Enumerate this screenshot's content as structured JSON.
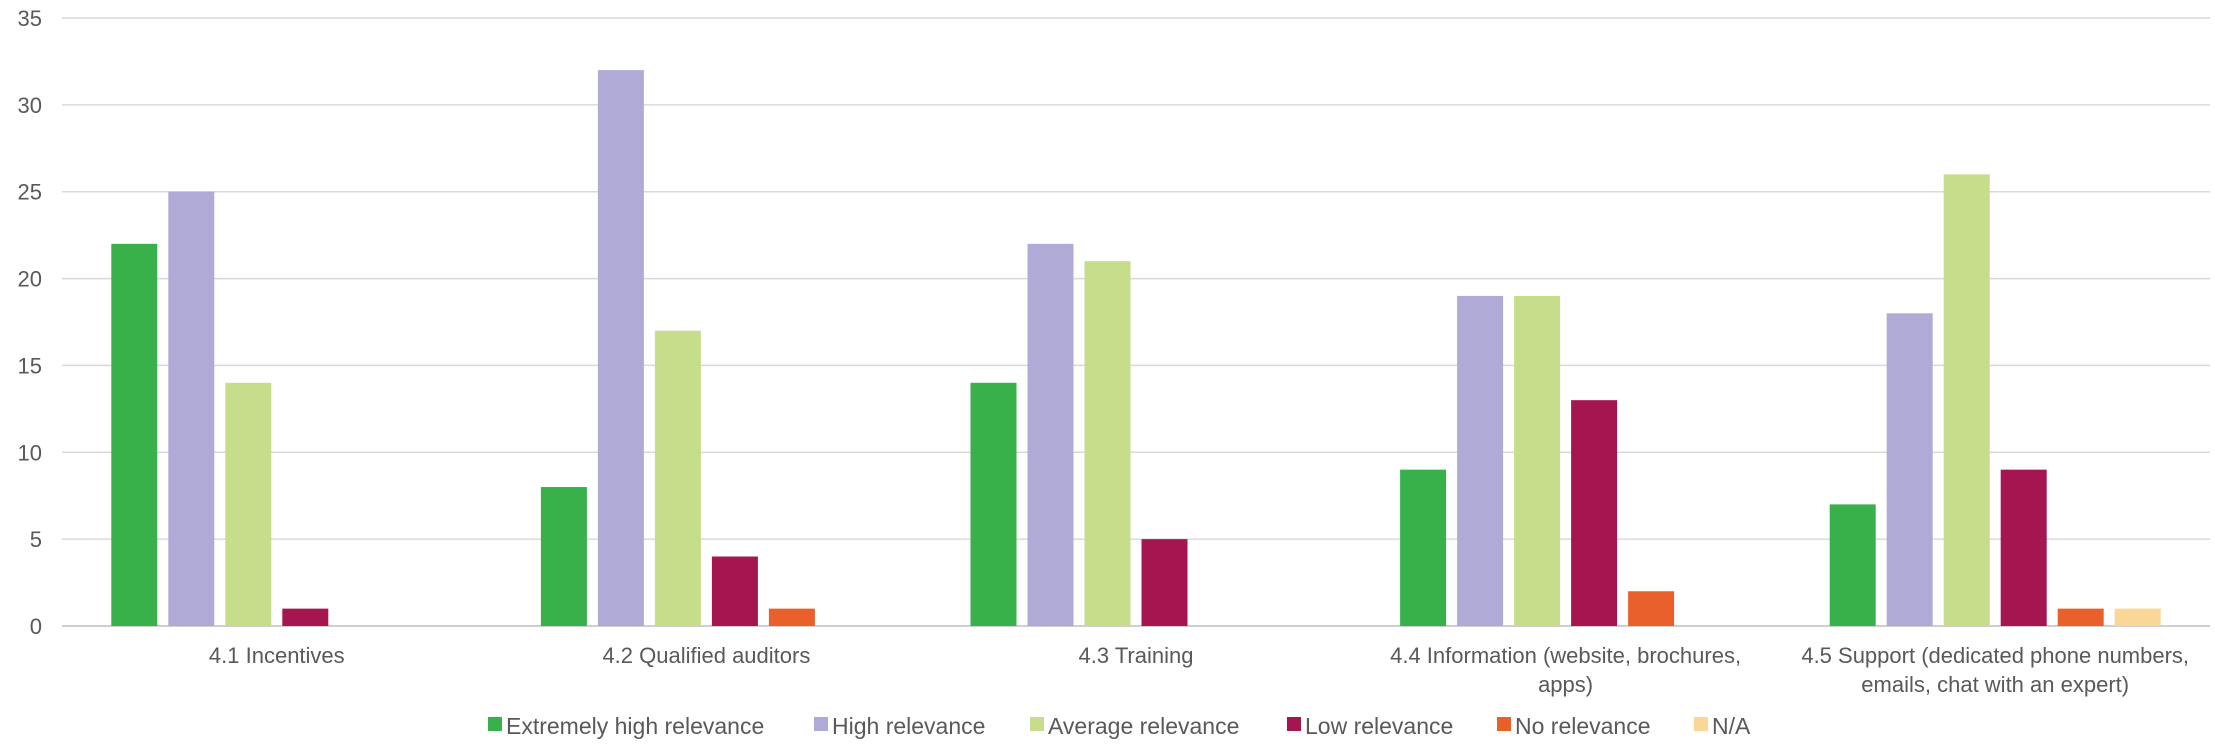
{
  "chart_data": {
    "type": "bar",
    "categories": [
      "4.1 Incentives",
      "4.2 Qualified auditors",
      "4.3 Training",
      "4.4 Information (website, brochures, apps)",
      "4.5 Support (dedicated phone numbers, emails, chat with an expert)"
    ],
    "category_lines": [
      [
        "4.1 Incentives"
      ],
      [
        "4.2 Qualified auditors"
      ],
      [
        "4.3 Training"
      ],
      [
        "4.4 Information (website, brochures,",
        "apps)"
      ],
      [
        "4.5 Support (dedicated phone numbers,",
        "emails, chat with an expert)"
      ]
    ],
    "series": [
      {
        "name": "Extremely high relevance",
        "color": "#39B14A",
        "values": [
          22,
          8,
          14,
          9,
          7
        ]
      },
      {
        "name": "High relevance",
        "color": "#B0AAD6",
        "values": [
          25,
          32,
          22,
          19,
          18
        ]
      },
      {
        "name": "Average relevance",
        "color": "#C6DE8C",
        "values": [
          14,
          17,
          21,
          19,
          26
        ]
      },
      {
        "name": "Low relevance",
        "color": "#A5154F",
        "values": [
          1,
          4,
          5,
          13,
          9
        ]
      },
      {
        "name": "No relevance",
        "color": "#E9602A",
        "values": [
          0,
          1,
          0,
          2,
          1
        ]
      },
      {
        "name": "N/A",
        "color": "#FAD796",
        "values": [
          0,
          0,
          0,
          0,
          1
        ]
      }
    ],
    "ylim": [
      0,
      35
    ],
    "yticks": [
      "0",
      "5",
      "10",
      "15",
      "20",
      "25",
      "30",
      "35"
    ],
    "title": "",
    "xlabel": "",
    "ylabel": "",
    "grid": true,
    "legend_position": "bottom"
  }
}
